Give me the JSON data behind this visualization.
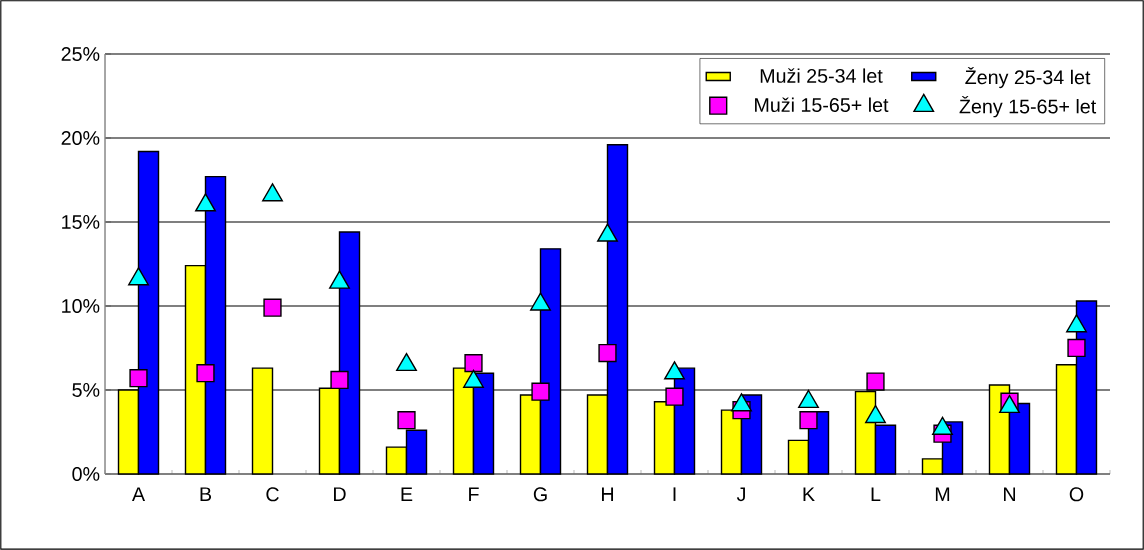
{
  "chart_data": {
    "type": "bar",
    "categories": [
      "A",
      "B",
      "C",
      "D",
      "E",
      "F",
      "G",
      "H",
      "I",
      "J",
      "K",
      "L",
      "M",
      "N",
      "O"
    ],
    "series": [
      {
        "name": "Muži 25-34 let",
        "color": "#ffff00",
        "values": [
          5.0,
          12.4,
          6.3,
          5.1,
          1.6,
          6.3,
          4.7,
          4.7,
          4.3,
          3.8,
          2.0,
          4.9,
          0.9,
          5.3,
          6.5
        ]
      },
      {
        "name": "Ženy 25-34 let",
        "color": "#0000ff",
        "values": [
          19.2,
          17.7,
          null,
          14.4,
          2.6,
          6.0,
          13.4,
          19.6,
          6.3,
          4.7,
          3.7,
          2.9,
          3.1,
          4.2,
          10.3
        ]
      },
      {
        "name": "Muži 15-65+ let",
        "type": "scatter",
        "marker": "square",
        "color": "#ff00ff",
        "values": [
          5.7,
          6.0,
          9.9,
          5.6,
          3.2,
          6.6,
          4.9,
          7.2,
          4.6,
          3.8,
          3.2,
          5.5,
          2.4,
          4.3,
          7.5
        ]
      },
      {
        "name": "Ženy 15-65+ let",
        "type": "scatter",
        "marker": "triangle",
        "color": "#00ffff",
        "values": [
          11.6,
          16.0,
          16.6,
          11.4,
          6.5,
          5.5,
          10.1,
          14.2,
          6.0,
          4.1,
          4.3,
          3.4,
          2.7,
          4.0,
          8.8
        ]
      }
    ],
    "ylim": [
      0,
      25
    ],
    "yticks": [
      {
        "value": 0,
        "label": "0%"
      },
      {
        "value": 5,
        "label": "5%"
      },
      {
        "value": 10,
        "label": "10%"
      },
      {
        "value": 15,
        "label": "15%"
      },
      {
        "value": 20,
        "label": "20%"
      },
      {
        "value": 25,
        "label": "25%"
      }
    ],
    "grid": "y",
    "legend": "top right"
  }
}
